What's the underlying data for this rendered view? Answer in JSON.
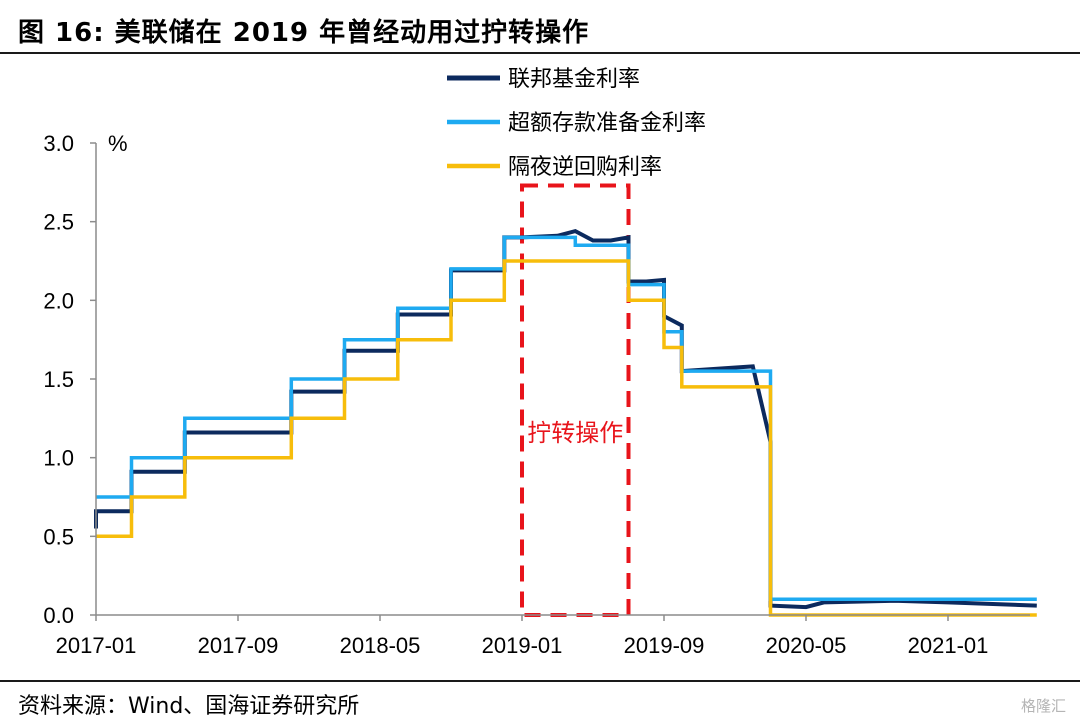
{
  "figure": {
    "title": "图 16:  美联储在 2019 年曾经动用过拧转操作",
    "source": "资料来源：Wind、国海证券研究所",
    "watermark": "格隆汇"
  },
  "chart_data": {
    "type": "line",
    "title": "",
    "xlabel": "",
    "ylabel": "%",
    "ylim": [
      0,
      3.0
    ],
    "yticks": [
      "0.0",
      "0.5",
      "1.0",
      "1.5",
      "2.0",
      "2.5",
      "3.0"
    ],
    "xlim": [
      "2017-01",
      "2021-06"
    ],
    "xticks": [
      "2017-01",
      "2017-09",
      "2018-05",
      "2019-01",
      "2019-09",
      "2020-05",
      "2021-01"
    ],
    "grid": false,
    "legend": "top-center",
    "annotation": {
      "label": "拧转操作",
      "start": "2019-01",
      "end": "2019-07",
      "top": 2.73,
      "color": "#e8141b"
    },
    "series": [
      {
        "name": "联邦基金利率",
        "color": "#0c2a5e",
        "points": [
          [
            "2017-01",
            0.55
          ],
          [
            "2017-01",
            0.66
          ],
          [
            "2017-03",
            0.66
          ],
          [
            "2017-03",
            0.91
          ],
          [
            "2017-06",
            0.91
          ],
          [
            "2017-06",
            1.16
          ],
          [
            "2017-12",
            1.16
          ],
          [
            "2017-12",
            1.42
          ],
          [
            "2018-03",
            1.42
          ],
          [
            "2018-03",
            1.68
          ],
          [
            "2018-06",
            1.68
          ],
          [
            "2018-06",
            1.91
          ],
          [
            "2018-09",
            1.91
          ],
          [
            "2018-09",
            2.19
          ],
          [
            "2018-12",
            2.19
          ],
          [
            "2018-12",
            2.4
          ],
          [
            "2019-01",
            2.4
          ],
          [
            "2019-03",
            2.41
          ],
          [
            "2019-04",
            2.44
          ],
          [
            "2019-05",
            2.38
          ],
          [
            "2019-06",
            2.38
          ],
          [
            "2019-07",
            2.4
          ],
          [
            "2019-07",
            2.12
          ],
          [
            "2019-08",
            2.12
          ],
          [
            "2019-09",
            2.13
          ],
          [
            "2019-09",
            1.9
          ],
          [
            "2019-10",
            1.84
          ],
          [
            "2019-10",
            1.55
          ],
          [
            "2020-02",
            1.58
          ],
          [
            "2020-03",
            1.1
          ],
          [
            "2020-03",
            0.25
          ],
          [
            "2020-03",
            0.06
          ],
          [
            "2020-05",
            0.05
          ],
          [
            "2020-06",
            0.08
          ],
          [
            "2020-10",
            0.09
          ],
          [
            "2021-01",
            0.08
          ],
          [
            "2021-06",
            0.06
          ]
        ]
      },
      {
        "name": "超额存款准备金利率",
        "color": "#1eaaf1",
        "points": [
          [
            "2017-01",
            0.75
          ],
          [
            "2017-03",
            0.75
          ],
          [
            "2017-03",
            1.0
          ],
          [
            "2017-06",
            1.0
          ],
          [
            "2017-06",
            1.25
          ],
          [
            "2017-12",
            1.25
          ],
          [
            "2017-12",
            1.5
          ],
          [
            "2018-03",
            1.5
          ],
          [
            "2018-03",
            1.75
          ],
          [
            "2018-06",
            1.75
          ],
          [
            "2018-06",
            1.95
          ],
          [
            "2018-09",
            1.95
          ],
          [
            "2018-09",
            2.2
          ],
          [
            "2018-12",
            2.2
          ],
          [
            "2018-12",
            2.4
          ],
          [
            "2019-04",
            2.4
          ],
          [
            "2019-04",
            2.35
          ],
          [
            "2019-07",
            2.35
          ],
          [
            "2019-07",
            2.1
          ],
          [
            "2019-09",
            2.1
          ],
          [
            "2019-09",
            1.8
          ],
          [
            "2019-10",
            1.8
          ],
          [
            "2019-10",
            1.55
          ],
          [
            "2020-03",
            1.55
          ],
          [
            "2020-03",
            1.1
          ],
          [
            "2020-03",
            0.1
          ],
          [
            "2021-06",
            0.1
          ]
        ]
      },
      {
        "name": "隔夜逆回购利率",
        "color": "#f7bd0b",
        "points": [
          [
            "2017-01",
            0.5
          ],
          [
            "2017-03",
            0.5
          ],
          [
            "2017-03",
            0.75
          ],
          [
            "2017-06",
            0.75
          ],
          [
            "2017-06",
            1.0
          ],
          [
            "2017-12",
            1.0
          ],
          [
            "2017-12",
            1.25
          ],
          [
            "2018-03",
            1.25
          ],
          [
            "2018-03",
            1.5
          ],
          [
            "2018-06",
            1.5
          ],
          [
            "2018-06",
            1.75
          ],
          [
            "2018-09",
            1.75
          ],
          [
            "2018-09",
            2.0
          ],
          [
            "2018-12",
            2.0
          ],
          [
            "2018-12",
            2.25
          ],
          [
            "2019-07",
            2.25
          ],
          [
            "2019-07",
            2.0
          ],
          [
            "2019-09",
            2.0
          ],
          [
            "2019-09",
            1.7
          ],
          [
            "2019-10",
            1.7
          ],
          [
            "2019-10",
            1.45
          ],
          [
            "2020-03",
            1.45
          ],
          [
            "2020-03",
            1.0
          ],
          [
            "2020-03",
            0.0
          ],
          [
            "2021-06",
            0.0
          ]
        ]
      }
    ]
  }
}
